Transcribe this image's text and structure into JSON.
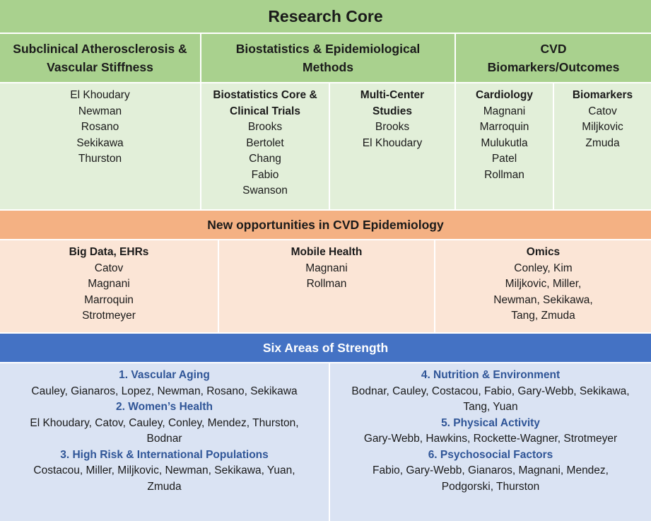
{
  "title": "Research Core",
  "research_columns": [
    {
      "header": "Subclinical Atherosclerosis & Vascular Stiffness"
    },
    {
      "header": "Biostatistics & Epidemiological Methods"
    },
    {
      "header": "CVD Biomarkers/Outcomes"
    }
  ],
  "col1_names": [
    "El Khoudary",
    "Newman",
    "Rosano",
    "Sekikawa",
    "Thurston"
  ],
  "biostat_core": {
    "title": "Biostatistics Core & Clinical Trials",
    "names": [
      "Brooks",
      "Bertolet",
      "Chang",
      "Fabio",
      "Swanson"
    ]
  },
  "multicenter": {
    "title": "Multi-Center Studies",
    "names": [
      "Brooks",
      "El Khoudary"
    ]
  },
  "cardiology": {
    "title": "Cardiology",
    "names": [
      "Magnani",
      "Marroquin",
      "Mulukutla",
      "Patel",
      "Rollman"
    ]
  },
  "biomarkers": {
    "title": "Biomarkers",
    "names": [
      "Catov",
      "Miljkovic",
      "Zmuda"
    ]
  },
  "opportunities": {
    "header": "New opportunities in CVD Epidemiology",
    "columns": [
      {
        "title": "Big Data, EHRs",
        "lines": [
          "Catov",
          "Magnani",
          "Marroquin",
          "Strotmeyer"
        ]
      },
      {
        "title": "Mobile Health",
        "lines": [
          "Magnani",
          "Rollman"
        ]
      },
      {
        "title": "Omics",
        "lines": [
          "Conley, Kim",
          "Miljkovic, Miller,",
          "Newman, Sekikawa,",
          "Tang, Zmuda"
        ]
      }
    ]
  },
  "strengths": {
    "header": "Six Areas of Strength",
    "left": [
      {
        "title": "1. Vascular Aging",
        "lines": [
          "Cauley, Gianaros, Lopez, Newman, Rosano, Sekikawa"
        ]
      },
      {
        "title": "2. Women’s Health",
        "lines": [
          "El Khoudary, Catov, Cauley, Conley, Mendez, Thurston,",
          "Bodnar"
        ]
      },
      {
        "title": "3. High Risk & International Populations",
        "lines": [
          "Costacou, Miller, Miljkovic, Newman, Sekikawa, Yuan,",
          "Zmuda"
        ]
      }
    ],
    "right": [
      {
        "title": "4. Nutrition & Environment",
        "lines": [
          "Bodnar, Cauley, Costacou, Fabio, Gary-Webb, Sekikawa,",
          "Tang, Yuan"
        ]
      },
      {
        "title": "5. Physical Activity",
        "lines": [
          "Gary-Webb, Hawkins, Rockette-Wagner, Strotmeyer"
        ]
      },
      {
        "title": "6. Psychosocial Factors",
        "lines": [
          "Fabio, Gary-Webb, Gianaros, Magnani, Mendez,",
          "Podgorski, Thurston"
        ]
      }
    ]
  },
  "colors": {
    "green_header": "#a9d18e",
    "green_light": "#e2efd9",
    "orange_header": "#f4b183",
    "orange_light": "#fbe5d6",
    "blue_header": "#4472c4",
    "blue_light": "#dae3f3",
    "area_title": "#2f5597"
  }
}
